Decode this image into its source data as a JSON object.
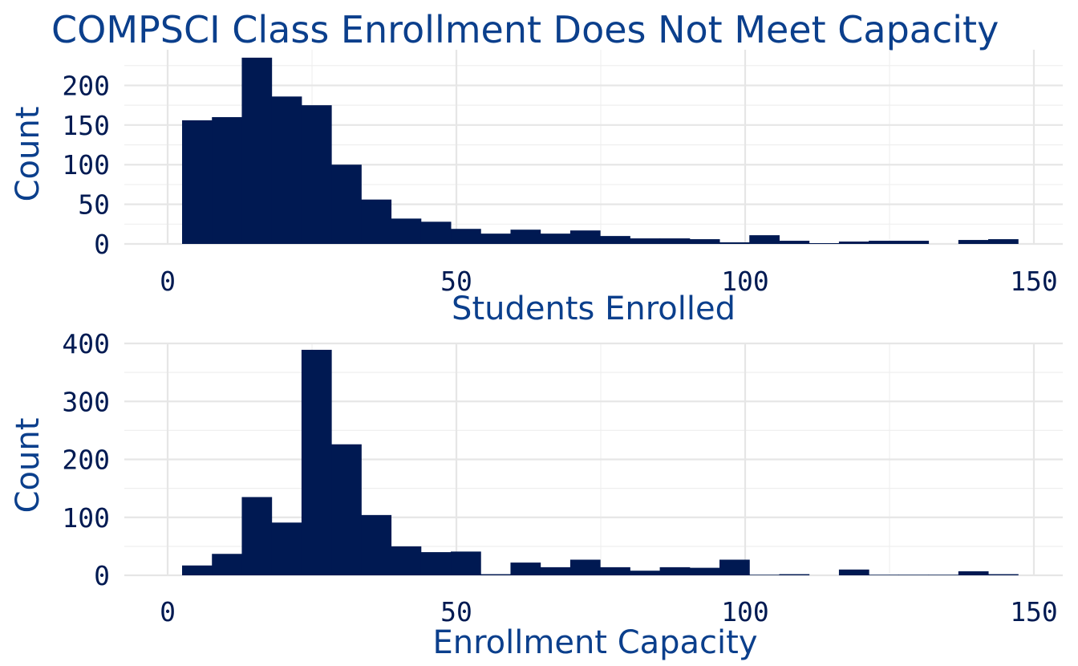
{
  "title": "COMPSCI Class Enrollment Does Not Meet Capacity",
  "colors": {
    "bar": "#001952",
    "title": "#0b3f8c",
    "tick": "#001a52",
    "grid": "#e6e6e6",
    "background": "#ffffff"
  },
  "chart_data": [
    {
      "type": "bar",
      "title": "COMPSCI Class Enrollment Does Not Meet Capacity",
      "xlabel": "Students Enrolled",
      "ylabel": "Count",
      "bin_width": 5.17,
      "bin_starts": [
        2.5,
        7.67,
        12.84,
        18.01,
        23.18,
        28.35,
        33.52,
        38.69,
        43.86,
        49.03,
        54.2,
        59.37,
        64.54,
        69.71,
        74.88,
        80.05,
        85.22,
        90.39,
        95.56,
        100.73,
        105.9,
        111.07,
        116.24,
        121.41,
        126.58,
        131.75,
        136.92,
        142.09
      ],
      "values": [
        156,
        160,
        235,
        186,
        175,
        100,
        56,
        32,
        28,
        19,
        13,
        18,
        13,
        17,
        10,
        7,
        7,
        6,
        2,
        11,
        4,
        1,
        3,
        4,
        4,
        0,
        5,
        6
      ],
      "xlim": [
        -7.5,
        155
      ],
      "ylim": [
        0,
        245
      ],
      "xticks": [
        0,
        50,
        100,
        150
      ],
      "xtick_labels": [
        "0",
        "50",
        "100",
        "150"
      ],
      "yticks": [
        0,
        50,
        100,
        150,
        200
      ],
      "ytick_labels": [
        "0",
        "50",
        "100",
        "150",
        "200"
      ],
      "grid": true
    },
    {
      "type": "bar",
      "xlabel": "Enrollment Capacity",
      "ylabel": "Count",
      "bin_width": 5.17,
      "bin_starts": [
        2.5,
        7.67,
        12.84,
        18.01,
        23.18,
        28.35,
        33.52,
        38.69,
        43.86,
        49.03,
        54.2,
        59.37,
        64.54,
        69.71,
        74.88,
        80.05,
        85.22,
        90.39,
        95.56,
        100.73,
        105.9,
        111.07,
        116.24,
        121.41,
        126.58,
        131.75,
        136.92,
        142.09
      ],
      "values": [
        17,
        37,
        135,
        91,
        389,
        226,
        104,
        50,
        40,
        41,
        2,
        22,
        14,
        27,
        14,
        8,
        14,
        13,
        27,
        1,
        2,
        0,
        10,
        1,
        1,
        1,
        7,
        2
      ],
      "xlim": [
        -7.5,
        155
      ],
      "ylim": [
        0,
        400
      ],
      "xticks": [
        0,
        50,
        100,
        150
      ],
      "xtick_labels": [
        "0",
        "50",
        "100",
        "150"
      ],
      "yticks": [
        0,
        100,
        200,
        300,
        400
      ],
      "ytick_labels": [
        "0",
        "100",
        "200",
        "300",
        "400"
      ],
      "grid": true
    }
  ]
}
